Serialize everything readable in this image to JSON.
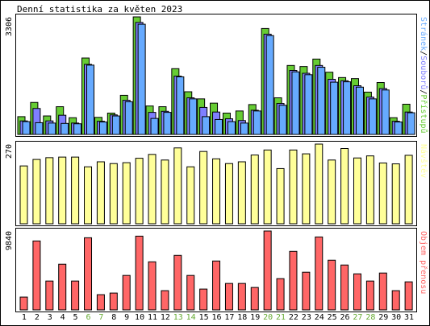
{
  "title": "Denní statistika za květen 2023",
  "colors": {
    "background": "#ffffff",
    "frame": "#000000",
    "hits": "#66cc33",
    "files": "#7f7fff",
    "pages": "#66aaff",
    "visits": "#ffff99",
    "kbytes": "#ff6666",
    "weekend_label": "#66aa33",
    "text": "#000000"
  },
  "chart_data": [
    {
      "type": "bar",
      "panel": "hits-files-pages",
      "categories": [
        "1",
        "2",
        "3",
        "4",
        "5",
        "6",
        "7",
        "8",
        "9",
        "10",
        "11",
        "12",
        "13",
        "14",
        "15",
        "16",
        "17",
        "18",
        "19",
        "20",
        "21",
        "22",
        "23",
        "24",
        "25",
        "26",
        "27",
        "28",
        "29",
        "30",
        "31"
      ],
      "weekend_days": [
        "6",
        "7",
        "13",
        "14",
        "20",
        "21",
        "27",
        "28"
      ],
      "ymax_label": "3306",
      "ylim": [
        0,
        3306
      ],
      "axis_label_parts": [
        {
          "text": "Stránek",
          "color": "#66aaff"
        },
        {
          "text": "/",
          "color": "#000000"
        },
        {
          "text": "Souborů",
          "color": "#7f7fff"
        },
        {
          "text": "/",
          "color": "#000000"
        },
        {
          "text": "Přístupů",
          "color": "#66cc33"
        }
      ],
      "series": [
        {
          "name": "Přístupů",
          "color": "#66cc33",
          "values": [
            500,
            900,
            520,
            780,
            470,
            2150,
            480,
            600,
            1100,
            3306,
            800,
            780,
            1850,
            1200,
            1000,
            880,
            600,
            660,
            840,
            2980,
            1030,
            1940,
            1910,
            2120,
            1750,
            1600,
            1570,
            1190,
            1460,
            470,
            850
          ]
        },
        {
          "name": "Souborů",
          "color": "#7f7fff",
          "values": [
            380,
            730,
            380,
            540,
            320,
            1970,
            370,
            550,
            960,
            3150,
            620,
            650,
            1640,
            1030,
            760,
            630,
            440,
            390,
            680,
            2820,
            870,
            1800,
            1720,
            1940,
            1550,
            1510,
            1370,
            1050,
            1290,
            370,
            630
          ]
        },
        {
          "name": "Stránek",
          "color": "#66aaff",
          "values": [
            360,
            330,
            320,
            310,
            300,
            1950,
            350,
            520,
            920,
            3100,
            450,
            620,
            1620,
            1000,
            500,
            420,
            360,
            320,
            660,
            2780,
            820,
            1760,
            1680,
            1890,
            1470,
            1480,
            1330,
            1000,
            1250,
            350,
            610
          ]
        }
      ]
    },
    {
      "type": "bar",
      "panel": "visits",
      "categories": [
        "1",
        "2",
        "3",
        "4",
        "5",
        "6",
        "7",
        "8",
        "9",
        "10",
        "11",
        "12",
        "13",
        "14",
        "15",
        "16",
        "17",
        "18",
        "19",
        "20",
        "21",
        "22",
        "23",
        "24",
        "25",
        "26",
        "27",
        "28",
        "29",
        "30",
        "31"
      ],
      "ymax_label": "270",
      "ylim": [
        0,
        270
      ],
      "axis_label_parts": [
        {
          "text": "Návštěv",
          "color": "#ffff99"
        }
      ],
      "series": [
        {
          "name": "Návštěv",
          "color": "#ffff99",
          "values": [
            196,
            218,
            224,
            226,
            226,
            193,
            210,
            204,
            207,
            222,
            235,
            216,
            257,
            193,
            245,
            220,
            204,
            210,
            233,
            250,
            187,
            250,
            237,
            270,
            216,
            255,
            223,
            230,
            206,
            203,
            232
          ]
        }
      ]
    },
    {
      "type": "bar",
      "panel": "kbytes",
      "categories": [
        "1",
        "2",
        "3",
        "4",
        "5",
        "6",
        "7",
        "8",
        "9",
        "10",
        "11",
        "12",
        "13",
        "14",
        "15",
        "16",
        "17",
        "18",
        "19",
        "20",
        "21",
        "22",
        "23",
        "24",
        "25",
        "26",
        "27",
        "28",
        "29",
        "30",
        "31"
      ],
      "ymax_label": "9840",
      "ylim": [
        0,
        9840
      ],
      "axis_label_parts": [
        {
          "text": "Objem přenosu",
          "color": "#ff6666"
        }
      ],
      "series": [
        {
          "name": "Objem přenosu",
          "color": "#ff6666",
          "values": [
            1600,
            8600,
            3600,
            5700,
            3600,
            9000,
            1900,
            2100,
            4300,
            9200,
            6000,
            2400,
            6800,
            4300,
            2600,
            6100,
            3300,
            3300,
            2800,
            9840,
            3900,
            7300,
            4700,
            9100,
            6200,
            5600,
            4500,
            3600,
            4600,
            2400,
            3500
          ]
        }
      ]
    }
  ]
}
